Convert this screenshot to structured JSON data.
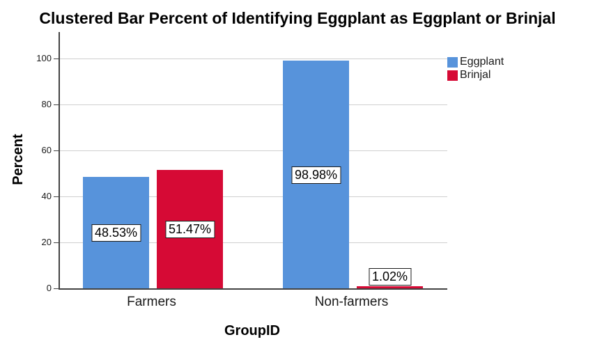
{
  "chart_data": {
    "type": "bar",
    "title": "Clustered Bar Percent of Identifying Eggplant as Eggplant or Brinjal",
    "xlabel": "GroupID",
    "ylabel": "Percent",
    "categories": [
      "Farmers",
      "Non-farmers"
    ],
    "series": [
      {
        "name": "Eggplant",
        "color": "#5793DB",
        "values": [
          48.53,
          98.98
        ],
        "data_labels": [
          "48.53%",
          "98.98%"
        ]
      },
      {
        "name": "Brinjal",
        "color": "#D60A35",
        "values": [
          51.47,
          1.02
        ],
        "data_labels": [
          "51.47%",
          "1.02%"
        ]
      }
    ],
    "yticks": [
      0,
      20,
      40,
      60,
      80,
      100
    ],
    "ylim": [
      0,
      111.5
    ],
    "grid": true,
    "legend_position": "top-right",
    "colors": {
      "gridline": "#CFCFCF",
      "axis": "#424242",
      "label_box_background": "#FFFFFF",
      "label_box_border": "#1A1A1A",
      "text": "#000000"
    }
  }
}
